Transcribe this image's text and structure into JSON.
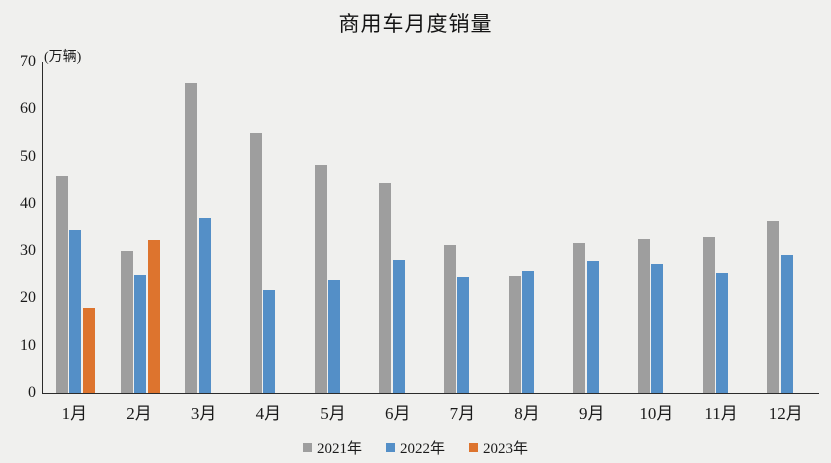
{
  "title": "商用车月度销量",
  "y_axis_unit": "(万辆)",
  "colors": {
    "background": "#f0f0ee",
    "axis": "#2b2b2b",
    "series_2021": "#9e9e9e",
    "series_2022": "#548fc7",
    "series_2023": "#dd742e"
  },
  "chart_data": {
    "type": "bar",
    "title": "商用车月度销量",
    "unit_label": "(万辆)",
    "xlabel": "",
    "ylabel": "万辆",
    "categories": [
      "1月",
      "2月",
      "3月",
      "4月",
      "5月",
      "6月",
      "7月",
      "8月",
      "9月",
      "10月",
      "11月",
      "12月"
    ],
    "series": [
      {
        "name": "2021年",
        "color": "#9e9e9e",
        "values": [
          46,
          30,
          65.5,
          55,
          48.2,
          44.5,
          31.3,
          24.8,
          31.7,
          32.5,
          33,
          36.4
        ]
      },
      {
        "name": "2022年",
        "color": "#548fc7",
        "values": [
          34.5,
          25,
          37,
          21.7,
          24,
          28.2,
          24.5,
          25.8,
          27.9,
          27.3,
          25.4,
          29.2
        ]
      },
      {
        "name": "2023年",
        "color": "#dd742e",
        "values": [
          18,
          32.3,
          null,
          null,
          null,
          null,
          null,
          null,
          null,
          null,
          null,
          null
        ]
      }
    ],
    "ylim": [
      0,
      70
    ],
    "yticks": [
      0,
      10,
      20,
      30,
      40,
      50,
      60,
      70
    ],
    "grid": false,
    "legend_position": "bottom"
  }
}
